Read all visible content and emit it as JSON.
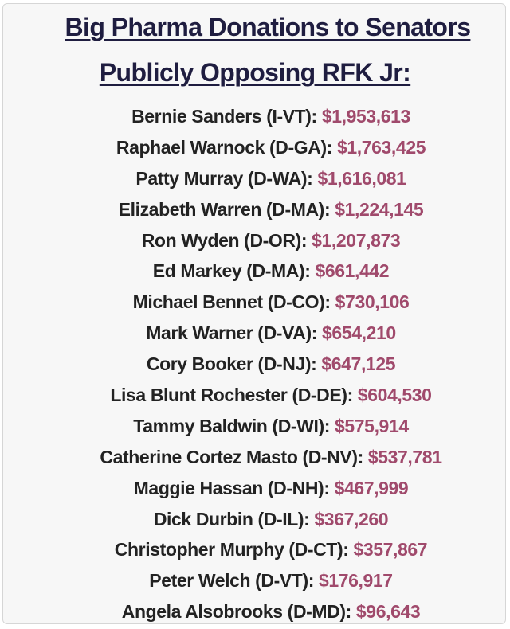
{
  "title": {
    "line1": "Big Pharma Donations to Senators",
    "line2": "Publicly Opposing RFK Jr:"
  },
  "colors": {
    "title": "#1f1d40",
    "name": "#222222",
    "amount": "#a04a6c",
    "background": "#f7f7f7"
  },
  "senators": [
    {
      "name": "Bernie Sanders (I-VT):",
      "amount": "$1,953,613"
    },
    {
      "name": "Raphael Warnock (D-GA):",
      "amount": "$1,763,425"
    },
    {
      "name": "Patty Murray (D-WA):",
      "amount": "$1,616,081"
    },
    {
      "name": "Elizabeth Warren (D-MA):",
      "amount": "$1,224,145"
    },
    {
      "name": "Ron Wyden (D-OR):",
      "amount": "$1,207,873"
    },
    {
      "name": "Ed Markey (D-MA):",
      "amount": "$661,442"
    },
    {
      "name": "Michael Bennet (D-CO):",
      "amount": "$730,106"
    },
    {
      "name": "Mark Warner (D-VA):",
      "amount": "$654,210"
    },
    {
      "name": "Cory Booker (D-NJ):",
      "amount": "$647,125"
    },
    {
      "name": "Lisa Blunt Rochester (D-DE):",
      "amount": "$604,530"
    },
    {
      "name": "Tammy Baldwin (D-WI):",
      "amount": "$575,914"
    },
    {
      "name": "Catherine Cortez Masto (D-NV):",
      "amount": "$537,781"
    },
    {
      "name": "Maggie Hassan (D-NH):",
      "amount": "$467,999"
    },
    {
      "name": "Dick Durbin (D-IL):",
      "amount": "$367,260"
    },
    {
      "name": "Christopher Murphy (D-CT):",
      "amount": "$357,867"
    },
    {
      "name": "Peter Welch (D-VT):",
      "amount": "$176,917"
    },
    {
      "name": "Angela Alsobrooks (D-MD):",
      "amount": "$96,643"
    }
  ]
}
